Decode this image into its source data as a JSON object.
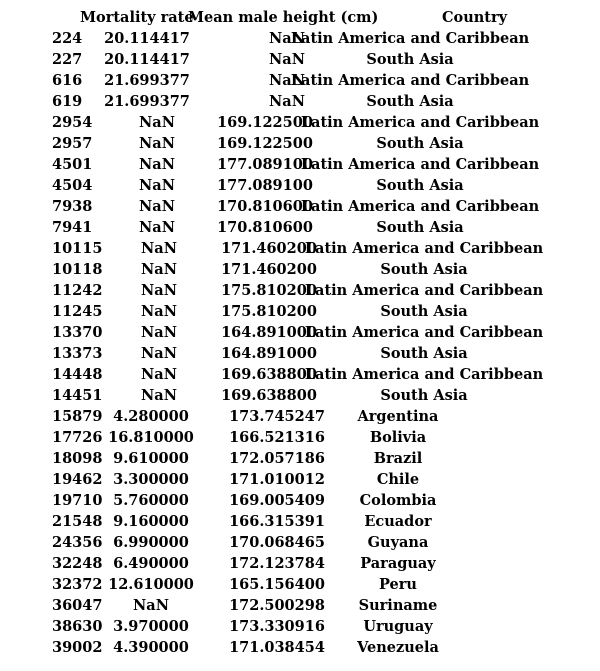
{
  "columns": {
    "mortality": "Mortality rate",
    "height": "Mean male height (cm)",
    "country": "Country"
  },
  "rows": [
    {
      "index": "224",
      "mortality": "20.114417",
      "height": "NaN",
      "country": "Latin America and Caribbean"
    },
    {
      "index": "227",
      "mortality": "20.114417",
      "height": "NaN",
      "country": "South Asia"
    },
    {
      "index": "616",
      "mortality": "21.699377",
      "height": "NaN",
      "country": "Latin America and Caribbean"
    },
    {
      "index": "619",
      "mortality": "21.699377",
      "height": "NaN",
      "country": "South Asia"
    },
    {
      "index": "2954",
      "mortality": "NaN",
      "height": "169.122500",
      "country": "Latin America and Caribbean"
    },
    {
      "index": "2957",
      "mortality": "NaN",
      "height": "169.122500",
      "country": "South Asia"
    },
    {
      "index": "4501",
      "mortality": "NaN",
      "height": "177.089100",
      "country": "Latin America and Caribbean"
    },
    {
      "index": "4504",
      "mortality": "NaN",
      "height": "177.089100",
      "country": "South Asia"
    },
    {
      "index": "7938",
      "mortality": "NaN",
      "height": "170.810600",
      "country": "Latin America and Caribbean"
    },
    {
      "index": "7941",
      "mortality": "NaN",
      "height": "170.810600",
      "country": "South Asia"
    },
    {
      "index": "10115",
      "mortality": "NaN",
      "height": "171.460200",
      "country": "Latin America and Caribbean"
    },
    {
      "index": "10118",
      "mortality": "NaN",
      "height": "171.460200",
      "country": "South Asia"
    },
    {
      "index": "11242",
      "mortality": "NaN",
      "height": "175.810200",
      "country": "Latin America and Caribbean"
    },
    {
      "index": "11245",
      "mortality": "NaN",
      "height": "175.810200",
      "country": "South Asia"
    },
    {
      "index": "13370",
      "mortality": "NaN",
      "height": "164.891000",
      "country": "Latin America and Caribbean"
    },
    {
      "index": "13373",
      "mortality": "NaN",
      "height": "164.891000",
      "country": "South Asia"
    },
    {
      "index": "14448",
      "mortality": "NaN",
      "height": "169.638800",
      "country": "Latin America and Caribbean"
    },
    {
      "index": "14451",
      "mortality": "NaN",
      "height": "169.638800",
      "country": "South Asia"
    },
    {
      "index": "15879",
      "mortality": "4.280000",
      "height": "173.745247",
      "country": "Argentina"
    },
    {
      "index": "17726",
      "mortality": "16.810000",
      "height": "166.521316",
      "country": "Bolivia"
    },
    {
      "index": "18098",
      "mortality": "9.610000",
      "height": "172.057186",
      "country": "Brazil"
    },
    {
      "index": "19462",
      "mortality": "3.300000",
      "height": "171.010012",
      "country": "Chile"
    },
    {
      "index": "19710",
      "mortality": "5.760000",
      "height": "169.005409",
      "country": "Colombia"
    },
    {
      "index": "21548",
      "mortality": "9.160000",
      "height": "166.315391",
      "country": "Ecuador"
    },
    {
      "index": "24356",
      "mortality": "6.990000",
      "height": "170.068465",
      "country": "Guyana"
    },
    {
      "index": "32248",
      "mortality": "6.490000",
      "height": "172.123784",
      "country": "Paraguay"
    },
    {
      "index": "32372",
      "mortality": "12.610000",
      "height": "165.156400",
      "country": "Peru"
    },
    {
      "index": "36047",
      "mortality": "NaN",
      "height": "172.500298",
      "country": "Suriname"
    },
    {
      "index": "38630",
      "mortality": "3.970000",
      "height": "173.330916",
      "country": "Uruguay"
    },
    {
      "index": "39002",
      "mortality": "4.390000",
      "height": "171.038454",
      "country": "Venezuela"
    }
  ]
}
